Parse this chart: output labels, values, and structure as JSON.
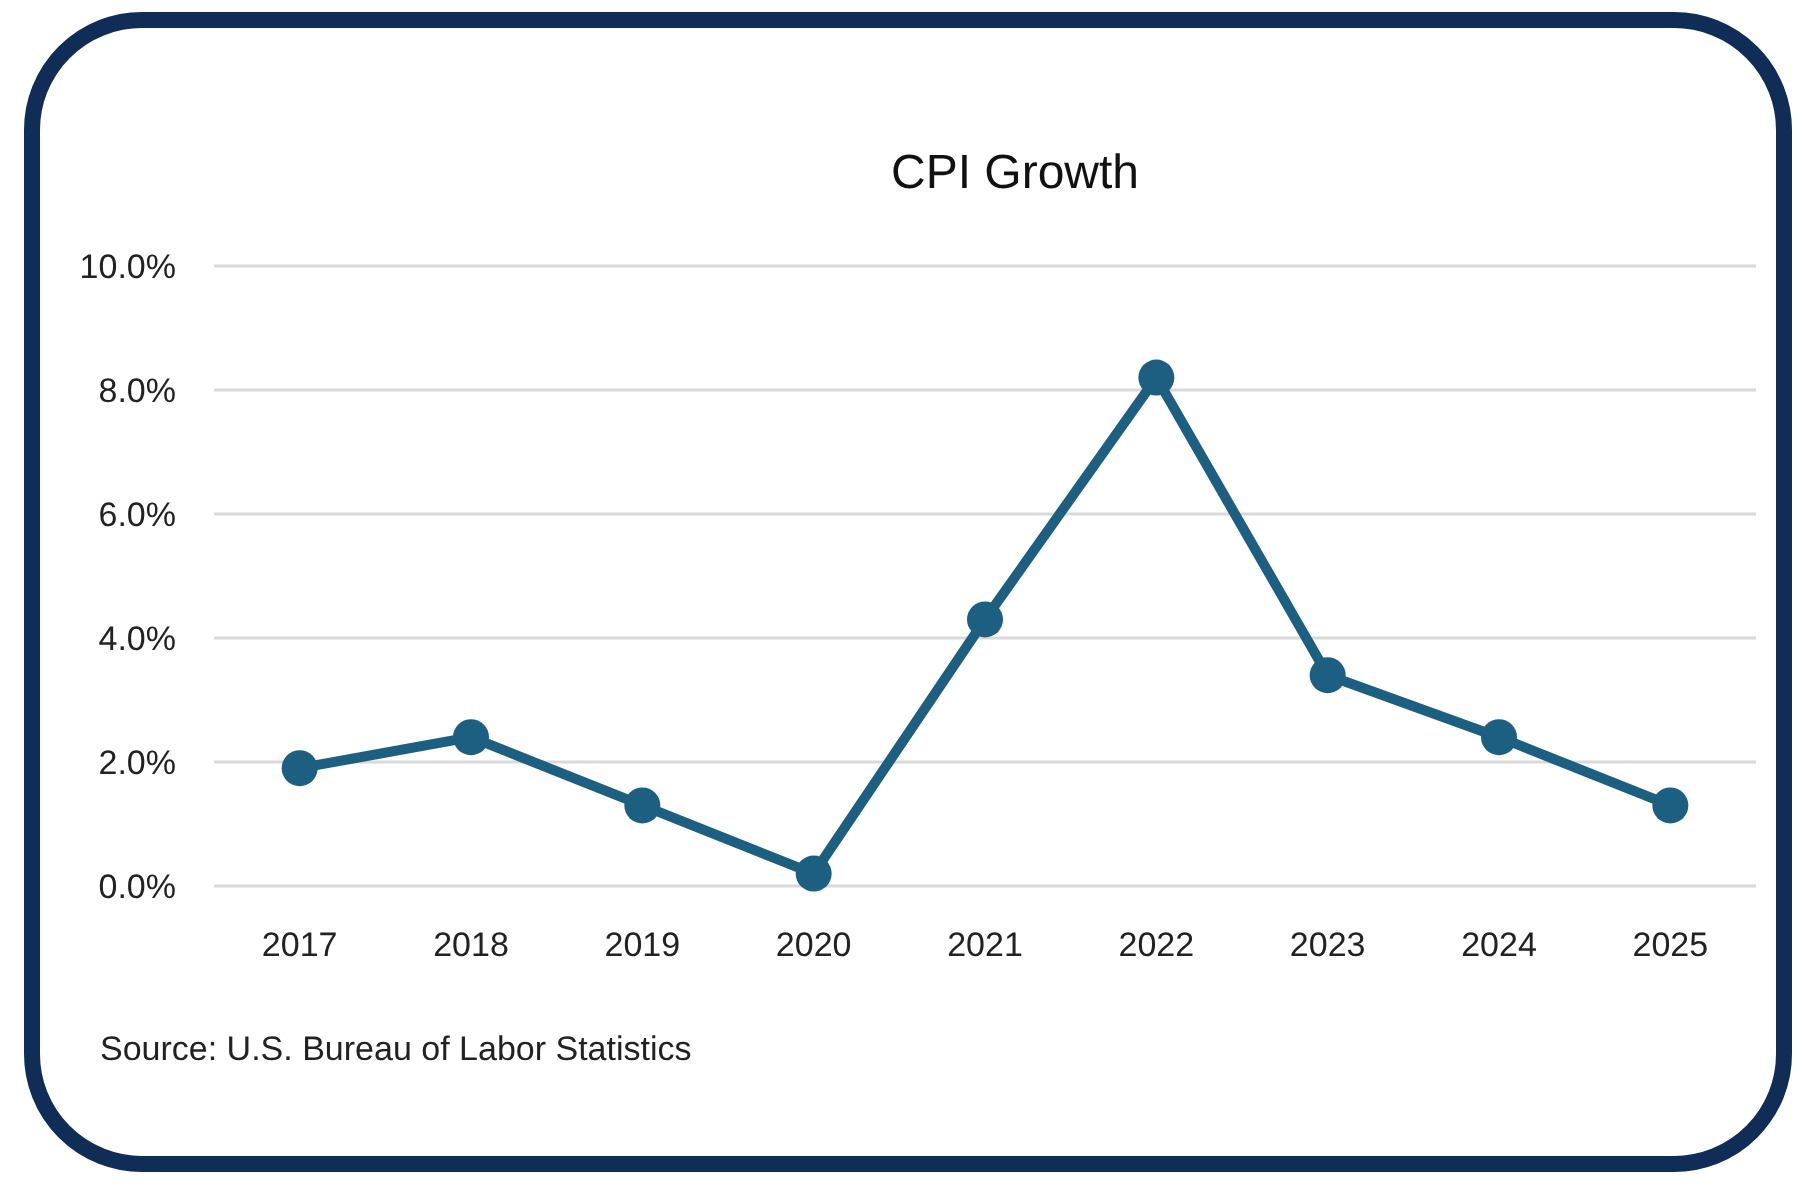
{
  "chart_data": {
    "type": "line",
    "title": "CPI Growth",
    "categories": [
      "2017",
      "2018",
      "2019",
      "2020",
      "2021",
      "2022",
      "2023",
      "2024",
      "2025"
    ],
    "series": [
      {
        "color": "#1d5f80",
        "values": [
          1.9,
          2.4,
          1.3,
          0.2,
          4.3,
          8.2,
          3.4,
          2.4,
          1.3
        ]
      }
    ],
    "ylim": [
      0,
      10
    ],
    "yticks": [
      {
        "value": 0,
        "label": "0.0%"
      },
      {
        "value": 2,
        "label": "2.0%"
      },
      {
        "value": 4,
        "label": "4.0%"
      },
      {
        "value": 6,
        "label": "6.0%"
      },
      {
        "value": 8,
        "label": "8.0%"
      },
      {
        "value": 10,
        "label": "10.0%"
      }
    ],
    "grid": "y",
    "marker": "circle",
    "line_style": "solid",
    "annotations": [
      "Source: U.S. Bureau of Labor Statistics"
    ]
  }
}
